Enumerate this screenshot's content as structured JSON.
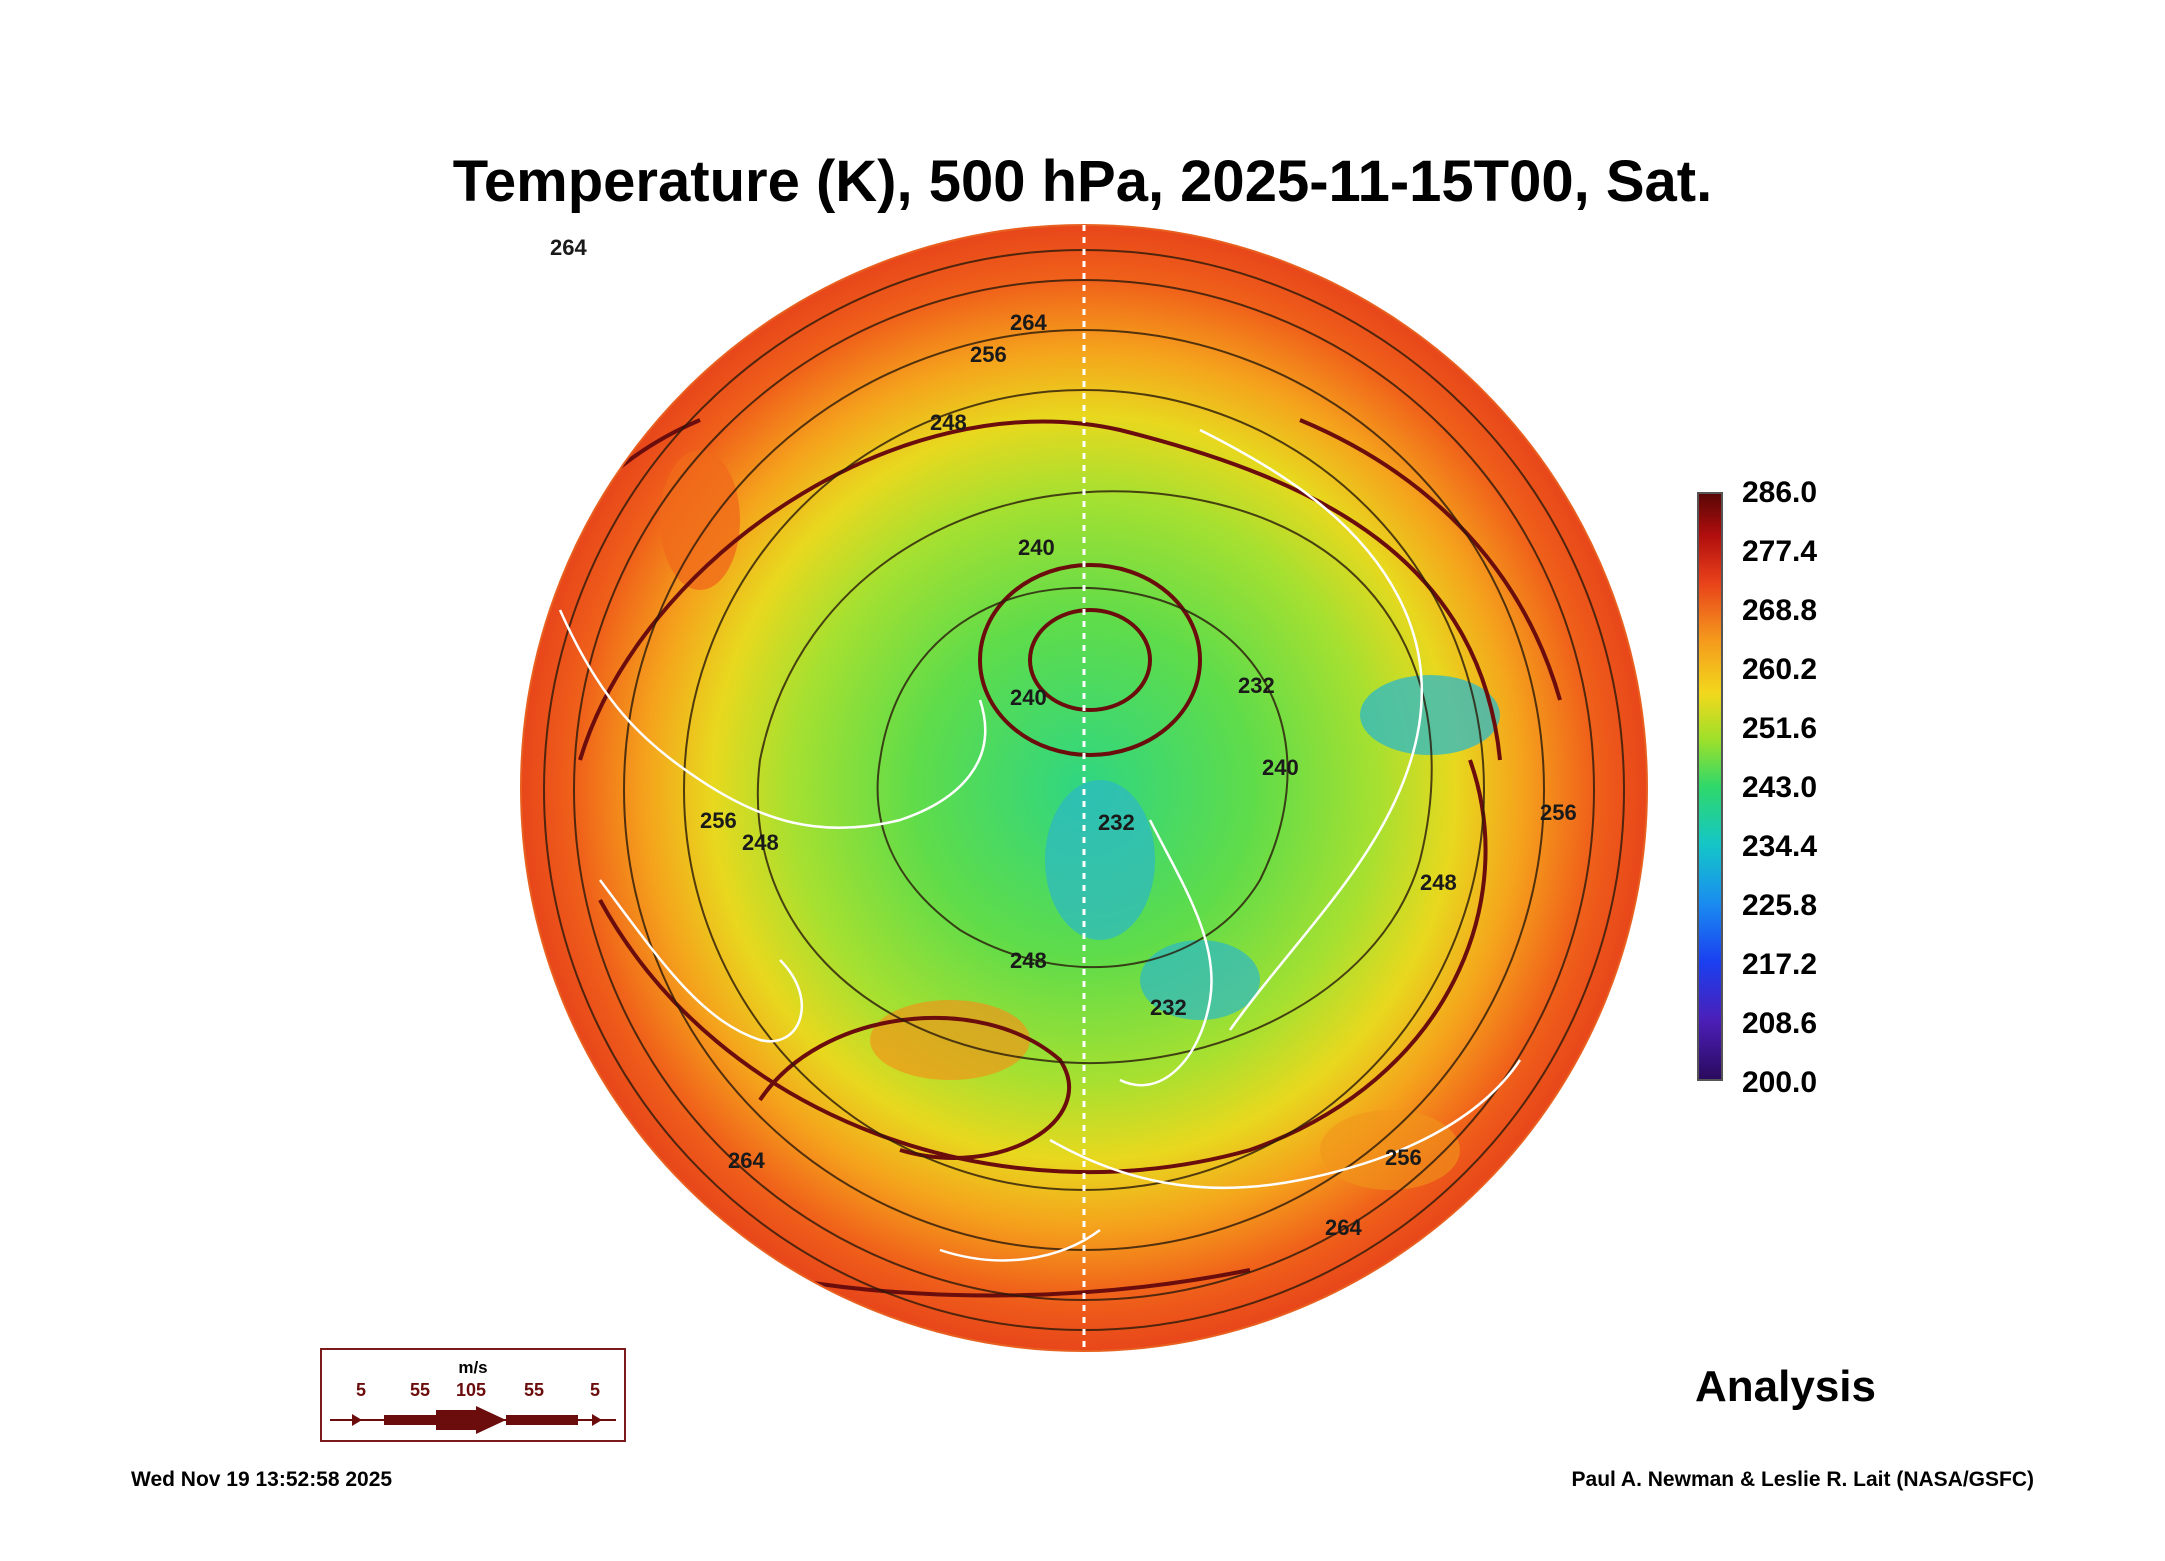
{
  "title": "Temperature (K), 500 hPa, 2025-11-15T00, Sat.",
  "colorbar": {
    "labels": [
      "286.0",
      "277.4",
      "268.8",
      "260.2",
      "251.6",
      "243.0",
      "234.4",
      "225.8",
      "217.2",
      "208.6",
      "200.0"
    ]
  },
  "contour_labels": [
    "264",
    "256",
    "248",
    "240",
    "240",
    "232",
    "240",
    "232",
    "248",
    "248",
    "256",
    "256",
    "248",
    "232",
    "264",
    "264",
    "256",
    "264"
  ],
  "wind_legend": {
    "unit": "m/s",
    "values": [
      "5",
      "55",
      "105",
      "55",
      "5"
    ]
  },
  "analysis_label": "Analysis",
  "timestamp": "Wed Nov 19 13:52:58 2025",
  "credit": "Paul A. Newman & Leslie R. Lait (NASA/GSFC)",
  "colors": {
    "arrow": "#6b0d0d",
    "warm": "#f05a1a",
    "cold": "#2fd0a0",
    "coast": "#ffffff"
  }
}
